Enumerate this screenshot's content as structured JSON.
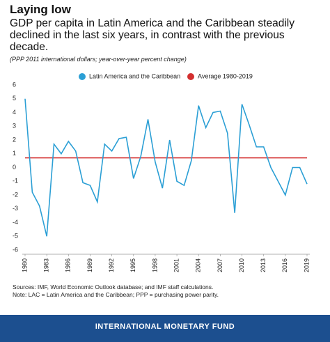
{
  "title": "Laying low",
  "subtitle": "GDP per capita in Latin America and the Caribbean steadily declined in the last six years, in contrast with the previous decade.",
  "note": "(PPP 2011 international dollars; year-over-year percent change)",
  "chart_data": {
    "type": "line",
    "x": [
      1980,
      1981,
      1982,
      1983,
      1984,
      1985,
      1986,
      1987,
      1988,
      1989,
      1990,
      1991,
      1992,
      1993,
      1994,
      1995,
      1996,
      1997,
      1998,
      1999,
      2000,
      2001,
      2002,
      2003,
      2004,
      2005,
      2006,
      2007,
      2008,
      2009,
      2010,
      2011,
      2012,
      2013,
      2014,
      2015,
      2016,
      2017,
      2018,
      2019
    ],
    "series": [
      {
        "name": "Latin America and the Caribbean",
        "color": "#2b9fd5",
        "values": [
          5.0,
          -1.8,
          -2.8,
          -5.0,
          1.7,
          1.0,
          1.9,
          1.2,
          -1.1,
          -1.3,
          -2.5,
          1.7,
          1.2,
          2.1,
          2.2,
          -0.8,
          0.8,
          3.5,
          0.4,
          -1.5,
          2.0,
          -1.0,
          -1.3,
          0.5,
          4.5,
          2.9,
          4.0,
          4.1,
          2.5,
          -3.3,
          4.6,
          3.1,
          1.5,
          1.5,
          0.0,
          -1.0,
          -2.0,
          0.0,
          0.0,
          -1.2
        ]
      }
    ],
    "reference_lines": [
      {
        "name": "Average 1980-2019",
        "color": "#d32f2f",
        "value": 0.7
      }
    ],
    "xlim": [
      1980,
      2019
    ],
    "xticks": [
      1980,
      1983,
      1986,
      1989,
      1992,
      1995,
      1998,
      2001,
      2004,
      2007,
      2010,
      2013,
      2016,
      2019
    ],
    "ylim": [
      -6,
      6
    ],
    "yticks": [
      -6,
      -5,
      -4,
      -3,
      -2,
      -1,
      0,
      1,
      2,
      3,
      4,
      5,
      6
    ],
    "legend": "top"
  },
  "sources": "Sources: IMF, World Economic Outlook database; and IMF staff calculations.",
  "footnote": "Note: LAC = Latin America and the Caribbean; PPP = purchasing power parity.",
  "organization": "INTERNATIONAL MONETARY FUND"
}
